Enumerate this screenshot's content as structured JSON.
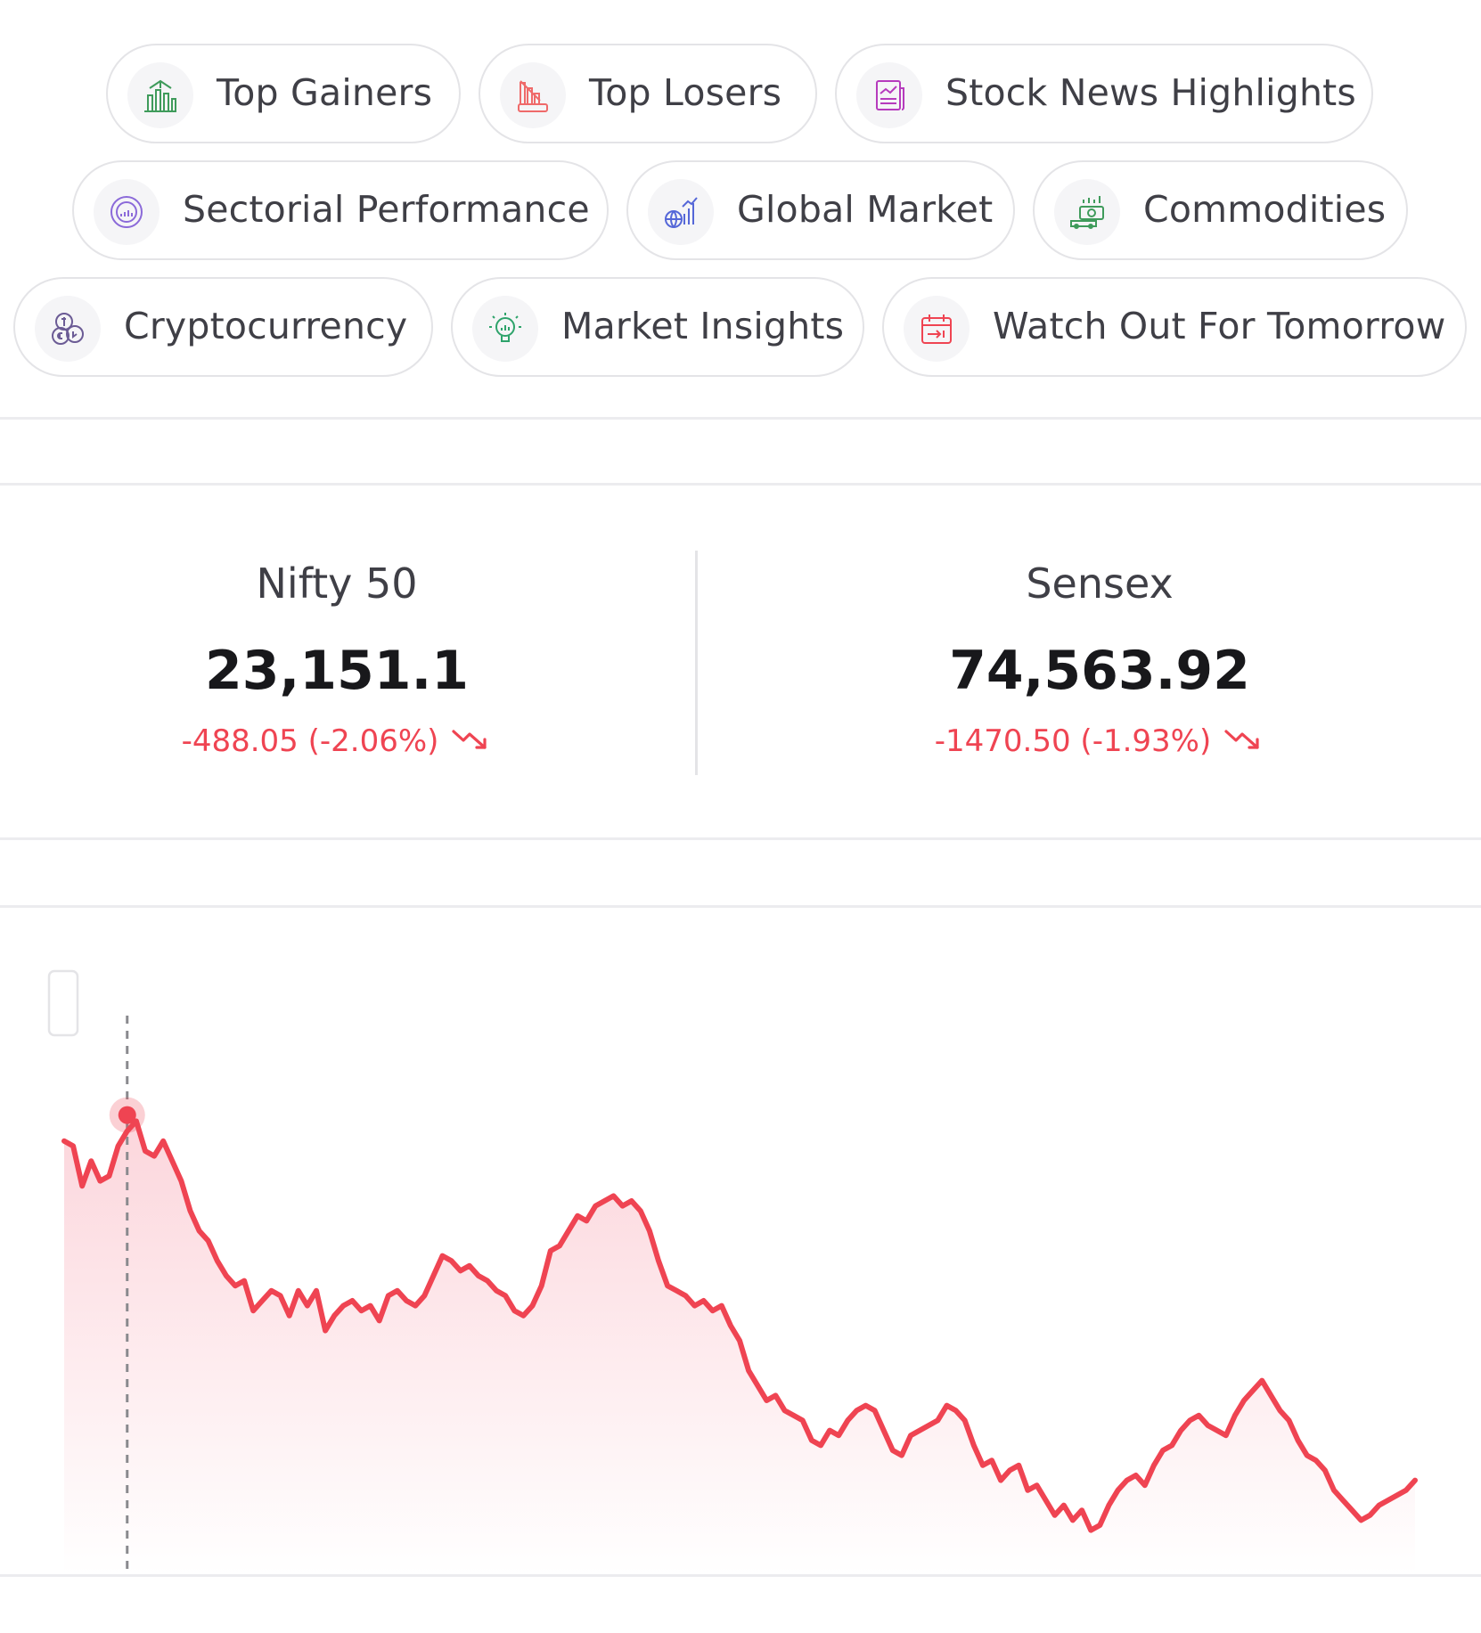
{
  "quick_links": [
    {
      "label": "Top Gainers",
      "icon": "top-gainers-icon",
      "color": "#3f9b5b"
    },
    {
      "label": "Top Losers",
      "icon": "top-losers-icon",
      "color": "#ef6a6a"
    },
    {
      "label": "Stock News Highlights",
      "icon": "stock-news-icon",
      "color": "#b63bbd"
    },
    {
      "label": "Sectorial Performance",
      "icon": "sectorial-performance-icon",
      "color": "#8b6ad9"
    },
    {
      "label": "Global Market",
      "icon": "global-market-icon",
      "color": "#5567d8"
    },
    {
      "label": "Commodities",
      "icon": "commodities-icon",
      "color": "#3f9b5b"
    },
    {
      "label": "Cryptocurrency",
      "icon": "cryptocurrency-icon",
      "color": "#6b5b95"
    },
    {
      "label": "Market Insights",
      "icon": "market-insights-icon",
      "color": "#2ea36b"
    },
    {
      "label": "Watch Out For Tomorrow",
      "icon": "watch-out-calendar-icon",
      "color": "#ef4452"
    }
  ],
  "indices": [
    {
      "name": "Nifty 50",
      "value": "23,151.1",
      "change": "-488.05 (-2.06%)",
      "trend": "down"
    },
    {
      "name": "Sensex",
      "value": "74,563.92",
      "change": "-1470.50 (-1.93%)",
      "trend": "down"
    }
  ],
  "colors": {
    "down": "#ef4452",
    "line": "#ef4452",
    "area_top": "#fcdde1"
  },
  "chart_data": {
    "type": "area",
    "ylim": [
      0,
      100
    ],
    "values": [
      82,
      81,
      73,
      78,
      74,
      75,
      81,
      84,
      86,
      80,
      79,
      82,
      78,
      74,
      68,
      64,
      62,
      58,
      55,
      53,
      54,
      48,
      50,
      52,
      51,
      47,
      52,
      49,
      52,
      44,
      47,
      49,
      50,
      48,
      49,
      46,
      51,
      52,
      50,
      49,
      51,
      55,
      59,
      58,
      56,
      57,
      55,
      54,
      52,
      51,
      48,
      47,
      49,
      53,
      60,
      61,
      64,
      67,
      66,
      69,
      70,
      71,
      69,
      70,
      68,
      64,
      58,
      53,
      52,
      51,
      49,
      50,
      48,
      49,
      45,
      42,
      36,
      33,
      30,
      31,
      28,
      27,
      26,
      22,
      21,
      24,
      23,
      26,
      28,
      29,
      28,
      24,
      20,
      19,
      23,
      24,
      25,
      26,
      29,
      28,
      26,
      21,
      17,
      18,
      14,
      16,
      17,
      12,
      13,
      10,
      7,
      9,
      6,
      8,
      4,
      5,
      9,
      12,
      14,
      15,
      13,
      17,
      20,
      21,
      24,
      26,
      27,
      25,
      24,
      23,
      27,
      30,
      32,
      34,
      31,
      28,
      26,
      22,
      19,
      18,
      16,
      12,
      10,
      8,
      6,
      7,
      9,
      10,
      11,
      12,
      14
    ],
    "marker_index": 7
  }
}
